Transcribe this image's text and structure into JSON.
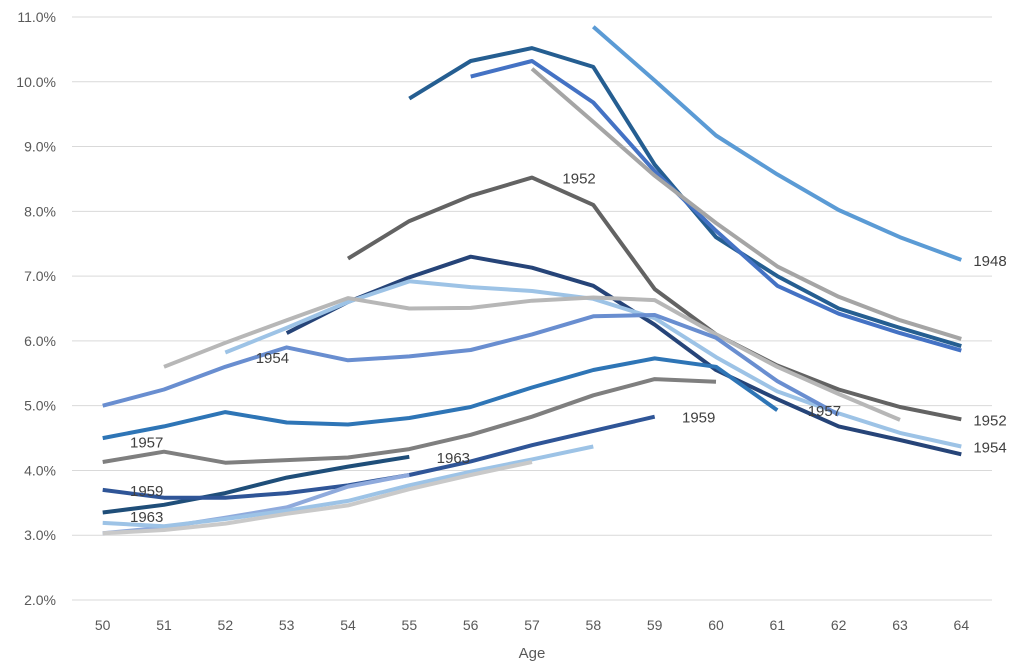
{
  "chart_data": {
    "type": "line",
    "title": "",
    "xlabel": "Age",
    "ylabel": "",
    "x": [
      50,
      51,
      52,
      53,
      54,
      55,
      56,
      57,
      58,
      59,
      60,
      61,
      62,
      63,
      64
    ],
    "ylim": [
      2.0,
      11.0
    ],
    "yticks": [
      "2.0%",
      "3.0%",
      "4.0%",
      "5.0%",
      "6.0%",
      "7.0%",
      "8.0%",
      "9.0%",
      "10.0%",
      "11.0%"
    ],
    "grid": true,
    "legend": "none",
    "series": [
      {
        "color": "#5b9bd5",
        "values": [
          null,
          null,
          null,
          null,
          null,
          null,
          null,
          null,
          10.85,
          10.02,
          9.17,
          8.57,
          8.02,
          7.6,
          7.25
        ]
      },
      {
        "color": "#255e91",
        "values": [
          null,
          null,
          null,
          null,
          null,
          9.74,
          10.32,
          10.52,
          10.23,
          8.72,
          7.6,
          7.0,
          6.5,
          6.2,
          5.92
        ]
      },
      {
        "color": "#4472c4",
        "values": [
          null,
          null,
          null,
          null,
          null,
          null,
          10.08,
          10.32,
          9.68,
          8.62,
          7.7,
          6.85,
          6.42,
          6.12,
          5.85
        ]
      },
      {
        "color": "#a5a5a5",
        "values": [
          null,
          null,
          null,
          null,
          null,
          null,
          null,
          10.2,
          9.38,
          8.55,
          7.82,
          7.15,
          6.68,
          6.32,
          6.03
        ]
      },
      {
        "color": "#636363",
        "values": [
          null,
          null,
          null,
          null,
          7.27,
          7.85,
          8.24,
          8.52,
          8.1,
          6.8,
          6.1,
          5.62,
          5.25,
          4.98,
          4.79
        ]
      },
      {
        "color": "#264478",
        "values": [
          null,
          null,
          null,
          6.12,
          6.6,
          6.98,
          7.3,
          7.13,
          6.85,
          6.25,
          5.55,
          5.1,
          4.68,
          4.47,
          4.25
        ]
      },
      {
        "color": "#9dc3e6",
        "values": [
          null,
          null,
          5.82,
          6.2,
          6.6,
          6.92,
          6.83,
          6.77,
          6.65,
          6.35,
          5.75,
          5.22,
          4.88,
          4.58,
          4.37
        ]
      },
      {
        "color": "#b7b7b7",
        "values": [
          null,
          5.6,
          5.97,
          6.32,
          6.66,
          6.5,
          6.51,
          6.62,
          6.67,
          6.63,
          6.1,
          5.6,
          5.18,
          4.78,
          null
        ]
      },
      {
        "color": "#698ed0",
        "values": [
          5.0,
          5.25,
          5.6,
          5.9,
          5.7,
          5.76,
          5.86,
          6.1,
          6.38,
          6.4,
          6.05,
          5.38,
          4.86,
          null,
          null
        ]
      },
      {
        "color": "#2e75b6",
        "values": [
          4.5,
          4.68,
          4.9,
          4.74,
          4.71,
          4.81,
          4.98,
          5.28,
          5.55,
          5.73,
          5.6,
          4.93,
          null,
          null,
          null
        ]
      },
      {
        "color": "#7f7f7f",
        "values": [
          4.13,
          4.29,
          4.12,
          4.16,
          4.2,
          4.33,
          4.55,
          4.83,
          5.16,
          5.41,
          5.37,
          null,
          null,
          null,
          null
        ]
      },
      {
        "color": "#1f4e79",
        "values": [
          3.35,
          3.47,
          3.65,
          3.89,
          4.06,
          4.21,
          null,
          null,
          null,
          null,
          null,
          null,
          null,
          null,
          null
        ]
      },
      {
        "color": "#2f5597",
        "values": [
          3.7,
          3.58,
          3.58,
          3.65,
          3.77,
          3.93,
          4.14,
          4.39,
          4.61,
          4.83,
          null,
          null,
          null,
          null,
          null
        ]
      },
      {
        "color": "#8faadc",
        "values": [
          3.03,
          3.12,
          3.27,
          3.43,
          3.75,
          3.93,
          null,
          null,
          null,
          null,
          null,
          null,
          null,
          null,
          null
        ]
      },
      {
        "color": "#9dc3e6",
        "values": [
          3.19,
          3.14,
          3.25,
          3.38,
          3.53,
          3.77,
          3.98,
          4.17,
          4.37,
          null,
          null,
          null,
          null,
          null,
          null
        ]
      },
      {
        "color": "#c9c9c9",
        "values": [
          3.03,
          3.08,
          3.18,
          3.33,
          3.46,
          3.71,
          3.93,
          4.13,
          null,
          null,
          null,
          null,
          null,
          null,
          null
        ]
      }
    ],
    "annotations": [
      {
        "text": "1948",
        "x": 64,
        "y": 7.25
      },
      {
        "text": "1952",
        "x": 57.3,
        "y": 8.52
      },
      {
        "text": "1954",
        "x": 52.3,
        "y": 5.75
      },
      {
        "text": "1957",
        "x": 50.25,
        "y": 4.45
      },
      {
        "text": "1959",
        "x": 50.25,
        "y": 3.7
      },
      {
        "text": "1963",
        "x": 50.25,
        "y": 3.3
      },
      {
        "text": "1963",
        "x": 55.25,
        "y": 4.21
      },
      {
        "text": "1959",
        "x": 59.25,
        "y": 4.83
      },
      {
        "text": "1957",
        "x": 61.3,
        "y": 4.93
      },
      {
        "text": "1952",
        "x": 64,
        "y": 4.79
      },
      {
        "text": "1954",
        "x": 64,
        "y": 4.37
      }
    ]
  }
}
